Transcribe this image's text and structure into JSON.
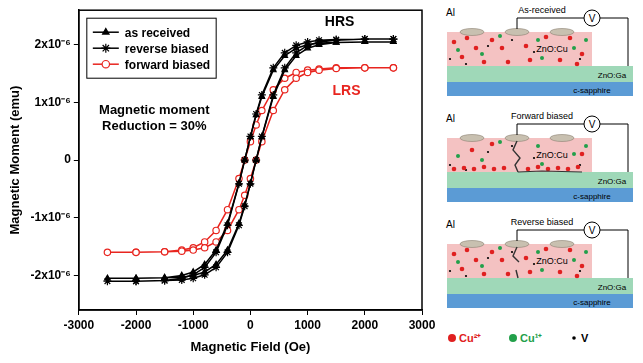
{
  "chart_data": {
    "type": "scatter",
    "x_label": "Magnetic Field (Oe)",
    "y_label": "Magnetic Moment (emu)",
    "xlim": [
      -3000,
      3000
    ],
    "xticks": [
      -3000,
      -2000,
      -1000,
      0,
      1000,
      2000,
      3000
    ],
    "ylim": [
      -2.6e-06,
      2.6e-06
    ],
    "yticks": [
      {
        "value": -2e-06,
        "label": "-2x10⁻⁶"
      },
      {
        "value": -1e-06,
        "label": "-1x10⁻⁶"
      },
      0,
      {
        "value": 1e-06,
        "label": "1x10⁻⁶"
      },
      {
        "value": 2e-06,
        "label": "2x10⁻⁶"
      }
    ],
    "grid": false,
    "legend": "upper left",
    "x": [
      2500,
      2000,
      1500,
      1200,
      1000,
      800,
      600,
      400,
      200,
      100,
      0,
      -100,
      -200,
      -400,
      -600,
      -800,
      -1000,
      -1200,
      -1500,
      -2000,
      -2500,
      -2000,
      -1500,
      -1200,
      -1000,
      -800,
      -600,
      -400,
      -200,
      -100,
      0,
      100,
      200,
      400,
      600,
      800,
      1000,
      1200,
      1500,
      2000,
      2500
    ],
    "series": [
      {
        "name": "as received",
        "color": "#000000",
        "marker": "triangle",
        "line_style": "solid",
        "values": [
          2.05e-06,
          2.05e-06,
          2.04e-06,
          2.03e-06,
          2e-06,
          1.94e-06,
          1.81e-06,
          1.56e-06,
          1.1e-06,
          7.8e-07,
          4e-07,
          0,
          -4e-07,
          -1.1e-06,
          -1.56e-06,
          -1.81e-06,
          -1.94e-06,
          -2e-06,
          -2.04e-06,
          -2.05e-06,
          -2.05e-06,
          -2.05e-06,
          -2.04e-06,
          -2.03e-06,
          -2e-06,
          -1.94e-06,
          -1.81e-06,
          -1.56e-06,
          -1.1e-06,
          -7.8e-07,
          -4e-07,
          0,
          4e-07,
          1.1e-06,
          1.56e-06,
          1.81e-06,
          1.94e-06,
          2e-06,
          2.04e-06,
          2.05e-06,
          2.05e-06
        ]
      },
      {
        "name": "reverse biased",
        "color": "#000000",
        "marker": "star",
        "line_style": "solid",
        "values": [
          2.1e-06,
          2.1e-06,
          2.09e-06,
          2.08e-06,
          2.05e-06,
          1.99e-06,
          1.86e-06,
          1.6e-06,
          1.13e-06,
          8e-07,
          4.1e-07,
          0,
          -4.1e-07,
          -1.13e-06,
          -1.6e-06,
          -1.86e-06,
          -1.99e-06,
          -2.05e-06,
          -2.09e-06,
          -2.1e-06,
          -2.1e-06,
          -2.1e-06,
          -2.09e-06,
          -2.08e-06,
          -2.05e-06,
          -1.99e-06,
          -1.86e-06,
          -1.6e-06,
          -1.13e-06,
          -8e-07,
          -4.1e-07,
          0,
          4.1e-07,
          1.13e-06,
          1.6e-06,
          1.86e-06,
          1.99e-06,
          2.05e-06,
          2.08e-06,
          2.1e-06,
          2.1e-06
        ]
      },
      {
        "name": "forward biased",
        "color": "#e8251f",
        "marker": "open_circle",
        "line_style": "solid",
        "values": [
          1.6e-06,
          1.6e-06,
          1.6e-06,
          1.58e-06,
          1.56e-06,
          1.52e-06,
          1.42e-06,
          1.22e-06,
          8.6e-07,
          6.1e-07,
          3.2e-07,
          0,
          -3.2e-07,
          -8.6e-07,
          -1.22e-06,
          -1.42e-06,
          -1.52e-06,
          -1.56e-06,
          -1.59e-06,
          -1.6e-06,
          -1.6e-06,
          -1.6e-06,
          -1.59e-06,
          -1.58e-06,
          -1.56e-06,
          -1.52e-06,
          -1.42e-06,
          -1.22e-06,
          -8.6e-07,
          -6.1e-07,
          -3.2e-07,
          0,
          3.2e-07,
          8.6e-07,
          1.22e-06,
          1.42e-06,
          1.52e-06,
          1.56e-06,
          1.59e-06,
          1.6e-06,
          1.6e-06
        ]
      }
    ],
    "annotations": [
      {
        "text": [
          "HRS"
        ],
        "color": "#000000"
      },
      {
        "text": [
          "LRS"
        ],
        "color": "#e8251f"
      },
      {
        "text": [
          "Magnetic moment",
          "Reduction = 30%"
        ],
        "color": "#000000"
      }
    ]
  },
  "diagram": {
    "panels": [
      {
        "title": "As-received"
      },
      {
        "title": "Forward biased"
      },
      {
        "title": "Reverse biased"
      }
    ],
    "labels": {
      "electrode": "Al",
      "film": "ZnO:Cu",
      "bottom_layer": "ZnO:Ga",
      "substrate": "c-sapphire",
      "meter": "V"
    },
    "legend": [
      {
        "text": "Cu²⁺",
        "color": "#e02020"
      },
      {
        "text": "Cu¹⁺",
        "color": "#22a04a"
      },
      {
        "text": "V",
        "color": "#000000"
      }
    ]
  }
}
